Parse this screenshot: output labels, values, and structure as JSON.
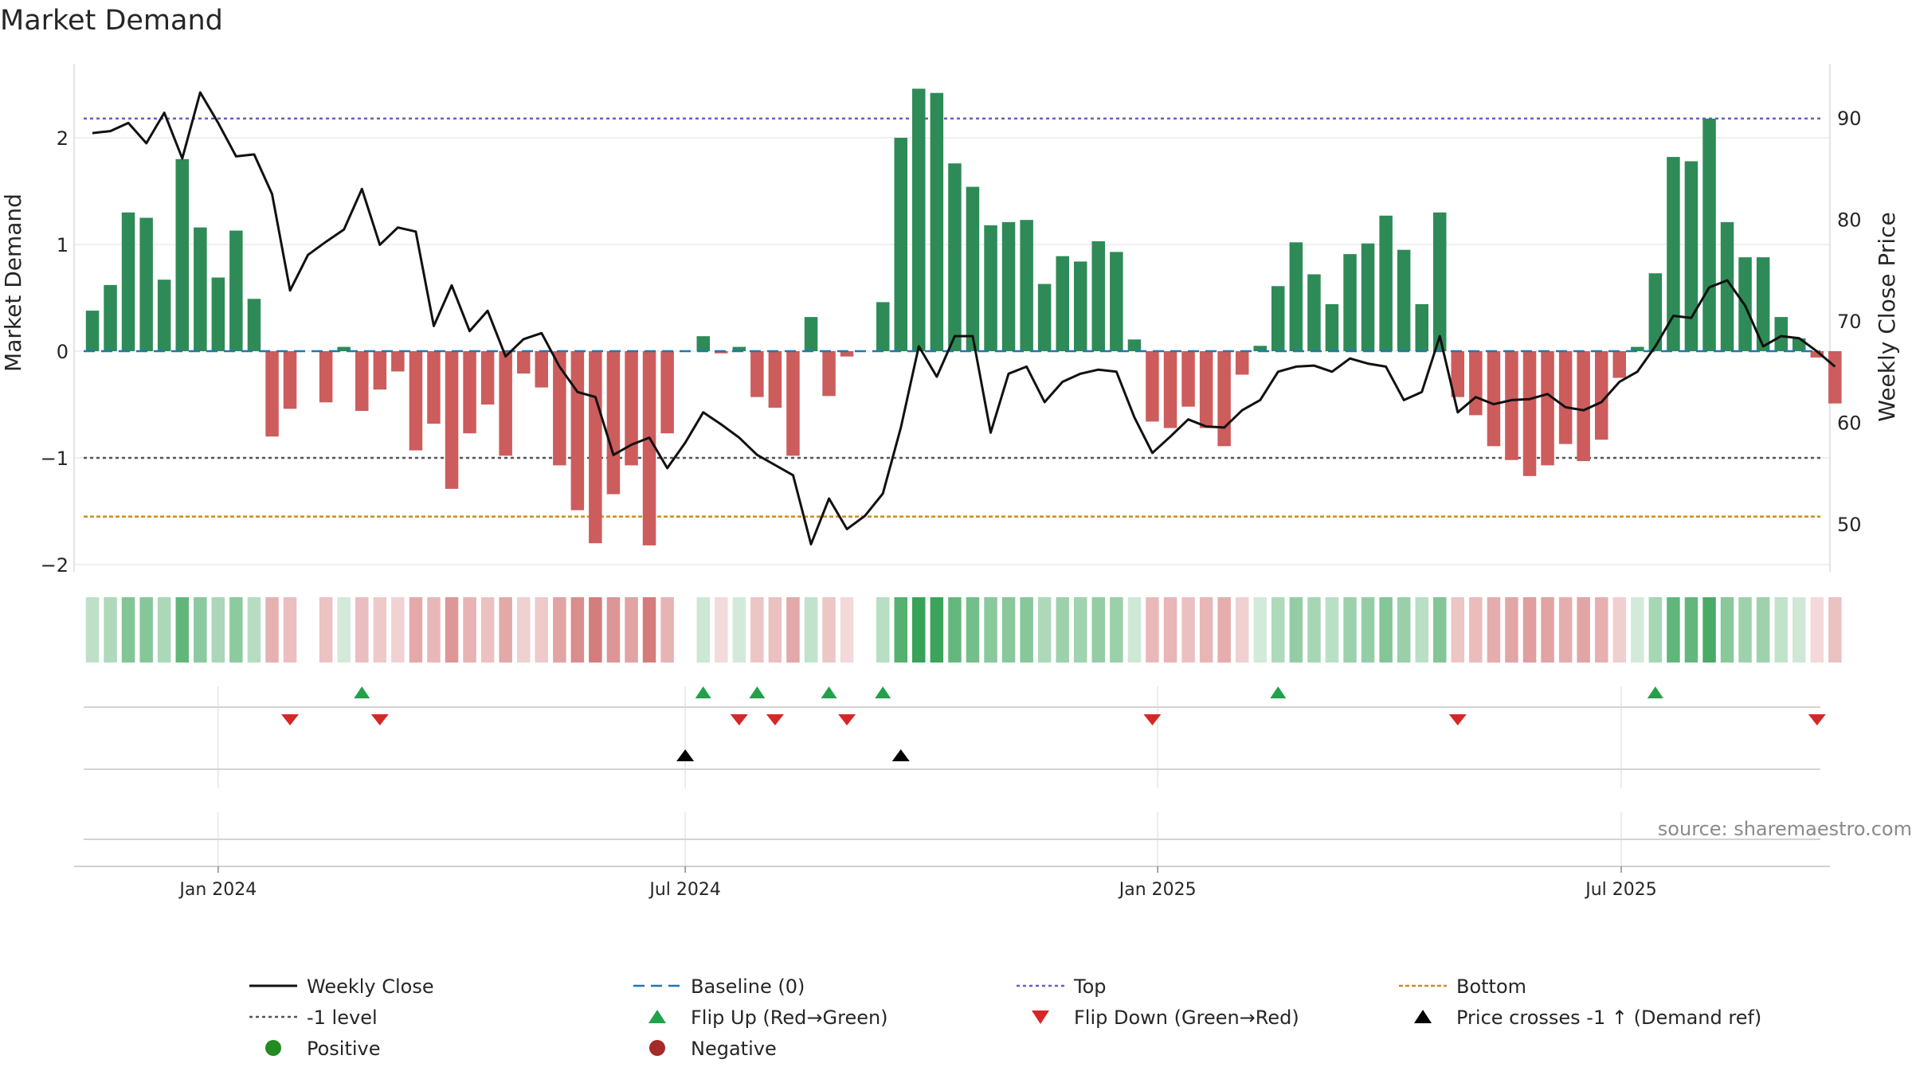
{
  "chart_data": {
    "type": "bar",
    "title": "Market Demand",
    "ylabel_left": "Market Demand",
    "ylabel_right": "Weekly Close Price",
    "ylim_left": [
      -2.3,
      2.6
    ],
    "ylim_right": [
      45,
      95
    ],
    "yticks_left": [
      {
        "v": 2,
        "label": "2"
      },
      {
        "v": 1,
        "label": "1"
      },
      {
        "v": 0,
        "label": "0"
      },
      {
        "v": -1,
        "label": "−1"
      },
      {
        "v": -2,
        "label": "−2"
      }
    ],
    "yticks_right": [
      {
        "v": 90,
        "label": "90"
      },
      {
        "v": 80,
        "label": "80"
      },
      {
        "v": 70,
        "label": "70"
      },
      {
        "v": 60,
        "label": "60"
      },
      {
        "v": 50,
        "label": "50"
      }
    ],
    "x_ticks": [
      {
        "week": 7,
        "label": "Jan 2024"
      },
      {
        "week": 33,
        "label": "Jul 2024"
      },
      {
        "week": 59.3,
        "label": "Jan 2025"
      },
      {
        "week": 85.1,
        "label": "Jul 2025"
      }
    ],
    "reference_lines": {
      "top": 2.18,
      "bottom": -1.55,
      "minus_one": -1,
      "baseline": 0
    },
    "demand": [
      0.38,
      0.62,
      1.3,
      1.25,
      0.67,
      1.8,
      1.16,
      0.69,
      1.13,
      0.49,
      -0.8,
      -0.54,
      0,
      -0.48,
      0.04,
      -0.56,
      -0.36,
      -0.19,
      -0.93,
      -0.68,
      -1.29,
      -0.77,
      -0.5,
      -0.98,
      -0.21,
      -0.34,
      -1.07,
      -1.49,
      -1.8,
      -1.34,
      -1.07,
      -1.82,
      -0.77,
      0,
      0.14,
      -0.02,
      0.04,
      -0.43,
      -0.53,
      -0.98,
      0.32,
      -0.42,
      -0.05,
      0,
      0.46,
      2,
      2.46,
      2.42,
      1.76,
      1.54,
      1.18,
      1.21,
      1.23,
      0.63,
      0.89,
      0.84,
      1.03,
      0.93,
      0.11,
      -0.66,
      -0.72,
      -0.52,
      -0.72,
      -0.89,
      -0.22,
      0.05,
      0.61,
      1.02,
      0.72,
      0.44,
      0.91,
      1.01,
      1.27,
      0.95,
      0.44,
      1.3,
      -0.43,
      -0.6,
      -0.89,
      -1.02,
      -1.17,
      -1.07,
      -0.87,
      -1.03,
      -0.83,
      -0.25,
      0.04,
      0.73,
      1.82,
      1.78,
      2.18,
      1.21,
      0.88,
      0.88,
      0.32,
      0.12,
      -0.06,
      -0.49
    ],
    "close": [
      88.5,
      88.7,
      89.5,
      87.5,
      90.5,
      86,
      92.5,
      89.5,
      86.2,
      86.4,
      82.5,
      73,
      76.5,
      77.8,
      79,
      83,
      77.5,
      79.2,
      78.8,
      69.5,
      73.5,
      69,
      71,
      66.5,
      68.2,
      68.8,
      65.5,
      63,
      62.5,
      56.8,
      57.8,
      58.5,
      55.5,
      58,
      61,
      59.8,
      58.5,
      56.8,
      55.8,
      54.8,
      48,
      52.5,
      49.5,
      50.8,
      53,
      59.5,
      67.5,
      64.5,
      68.5,
      68.5,
      59,
      64.8,
      65.5,
      62,
      64,
      64.8,
      65.2,
      65,
      60.5,
      57,
      58.6,
      60.3,
      59.6,
      59.5,
      61.2,
      62.2,
      65,
      65.5,
      65.6,
      65,
      66.3,
      65.8,
      65.5,
      62.2,
      63,
      68.5,
      61,
      62.5,
      61.8,
      62.2,
      62.3,
      62.8,
      61.5,
      61.2,
      62,
      64,
      65,
      67.5,
      70.5,
      70.3,
      73.3,
      74,
      71.5,
      67.5,
      68.5,
      68.3,
      67,
      65.5
    ],
    "flip_up": [
      15,
      34,
      37,
      41,
      44,
      66,
      87
    ],
    "flip_down": [
      11,
      16,
      36,
      38,
      42,
      59,
      76,
      96
    ],
    "price_cross": [
      33,
      45
    ],
    "legend": [
      {
        "key": "weekly-close",
        "label": "Weekly Close"
      },
      {
        "key": "baseline",
        "label": "Baseline (0)"
      },
      {
        "key": "top",
        "label": "Top"
      },
      {
        "key": "bottom",
        "label": "Bottom"
      },
      {
        "key": "minus-one",
        "label": "-1 level"
      },
      {
        "key": "flip-up",
        "label": "Flip Up (Red→Green)"
      },
      {
        "key": "flip-down",
        "label": "Flip Down (Green→Red)"
      },
      {
        "key": "price-cross",
        "label": "Price crosses -1 ↑ (Demand ref)"
      },
      {
        "key": "positive",
        "label": "Positive"
      },
      {
        "key": "negative",
        "label": "Negative"
      }
    ],
    "source": "source: sharemaestro.com"
  },
  "colors": {
    "positive_bar": "#2e8b57",
    "negative_bar": "#cd5c5c",
    "close_line": "#111111",
    "baseline": "#1f77b4",
    "top": "#6a5acd",
    "bottom": "#cc8e1a",
    "minus_one": "#555555",
    "flip_up": "#22a04b",
    "flip_down": "#d62728",
    "price_cross": "#000000",
    "positive_dot": "#228b22",
    "negative_dot": "#a52a2a"
  }
}
